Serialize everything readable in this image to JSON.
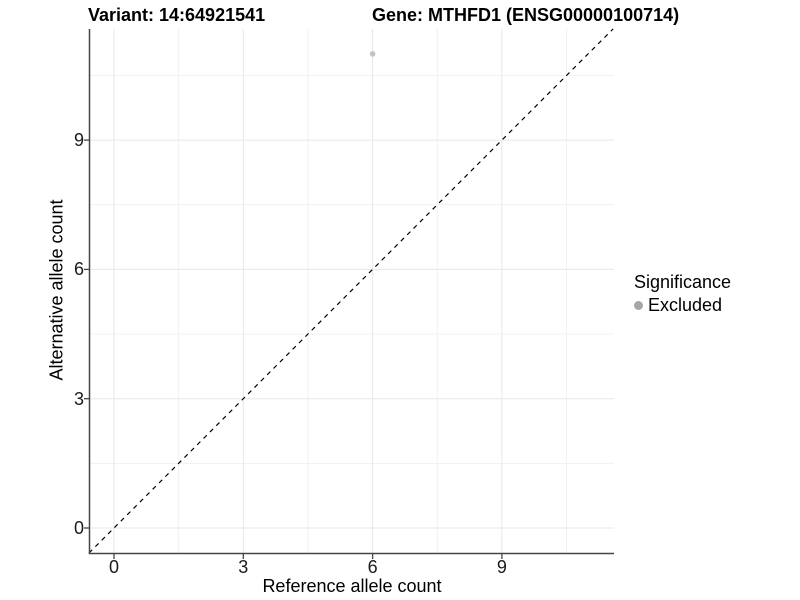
{
  "titles": {
    "variant": "Variant: 14:64921541",
    "gene": "Gene: MTHFD1 (ENSG00000100714)"
  },
  "chart_data": {
    "type": "scatter",
    "xlabel": "Reference allele count",
    "ylabel": "Alternative allele count",
    "x_ticks": [
      0,
      3,
      6,
      9
    ],
    "y_ticks": [
      0,
      3,
      6,
      9
    ],
    "x_minor_ticks": [
      1.5,
      4.5,
      7.5,
      10.5
    ],
    "y_minor_ticks": [
      1.5,
      4.5,
      7.5,
      10.5
    ],
    "xlim": [
      -0.58,
      11.58
    ],
    "ylim": [
      -0.58,
      11.58
    ],
    "grid": true,
    "points": [
      {
        "x": 6,
        "y": 11,
        "series": "Excluded",
        "color": "#c4c4c4"
      }
    ],
    "reference_line": {
      "slope": 1,
      "intercept": 0,
      "style": "dashed",
      "color": "#000000"
    },
    "legend": {
      "position": "right",
      "title": "Significance",
      "entries": [
        {
          "label": "Excluded",
          "color": "#a6a6a6"
        }
      ]
    },
    "colors": {
      "axis_line": "#454545",
      "major_grid": "#e7e7e7",
      "minor_grid": "#f1f1f1",
      "tick_text": "#1a1a1a"
    }
  }
}
